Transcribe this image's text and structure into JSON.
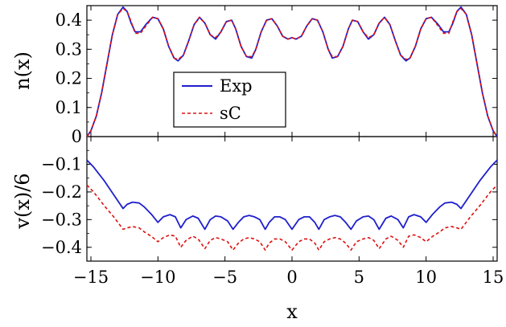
{
  "chart_data": [
    {
      "type": "line",
      "title": "",
      "xlabel": "",
      "ylabel": "n(x)",
      "xlim": [
        -15.3,
        15.3
      ],
      "ylim": [
        0,
        0.45
      ],
      "yticks": [
        0,
        0.1,
        0.2,
        0.3,
        0.4
      ],
      "ytick_labels": [
        "0",
        "0.1",
        "0.2",
        "0.3",
        "0.4"
      ],
      "legend": {
        "placement": "center-left",
        "entries": [
          {
            "label": "Exp",
            "color": "#1f1fcc",
            "style": "solid"
          },
          {
            "label": "sC",
            "color": "#e01010",
            "style": "dashed"
          }
        ]
      },
      "series": [
        {
          "name": "Exp",
          "color": "#1f1fcc",
          "style": "solid",
          "x": [
            -15.3,
            -15.0,
            -14.6,
            -14.2,
            -13.8,
            -13.4,
            -13.0,
            -12.6,
            -12.3,
            -12.0,
            -11.7,
            -11.3,
            -10.9,
            -10.4,
            -10.0,
            -9.6,
            -9.2,
            -8.8,
            -8.5,
            -8.1,
            -7.7,
            -7.3,
            -6.9,
            -6.5,
            -6.1,
            -5.7,
            -5.3,
            -4.9,
            -4.5,
            -4.2,
            -3.8,
            -3.4,
            -3.0,
            -2.7,
            -2.3,
            -1.9,
            -1.5,
            -1.1,
            -0.7,
            -0.3,
            0.0,
            0.3,
            0.7,
            1.1,
            1.5,
            1.9,
            2.3,
            2.7,
            3.0,
            3.4,
            3.8,
            4.2,
            4.5,
            4.9,
            5.3,
            5.7,
            6.1,
            6.5,
            6.9,
            7.3,
            7.7,
            8.1,
            8.5,
            8.8,
            9.2,
            9.6,
            10.0,
            10.4,
            10.9,
            11.3,
            11.7,
            12.0,
            12.3,
            12.6,
            13.0,
            13.4,
            13.8,
            14.2,
            14.6,
            15.0,
            15.3
          ],
          "y": [
            0.0,
            0.02,
            0.07,
            0.15,
            0.25,
            0.35,
            0.42,
            0.445,
            0.43,
            0.39,
            0.36,
            0.36,
            0.385,
            0.41,
            0.405,
            0.37,
            0.31,
            0.27,
            0.26,
            0.28,
            0.33,
            0.385,
            0.41,
            0.39,
            0.35,
            0.335,
            0.36,
            0.395,
            0.4,
            0.37,
            0.31,
            0.275,
            0.27,
            0.3,
            0.36,
            0.4,
            0.405,
            0.38,
            0.345,
            0.335,
            0.34,
            0.335,
            0.345,
            0.38,
            0.405,
            0.4,
            0.36,
            0.3,
            0.27,
            0.275,
            0.31,
            0.37,
            0.4,
            0.395,
            0.36,
            0.335,
            0.35,
            0.39,
            0.41,
            0.385,
            0.33,
            0.28,
            0.26,
            0.27,
            0.31,
            0.37,
            0.405,
            0.41,
            0.385,
            0.36,
            0.36,
            0.39,
            0.43,
            0.445,
            0.42,
            0.35,
            0.25,
            0.15,
            0.07,
            0.02,
            0.0
          ]
        },
        {
          "name": "sC",
          "color": "#e01010",
          "style": "dashed",
          "x": [
            -15.3,
            -15.0,
            -14.6,
            -14.2,
            -13.8,
            -13.4,
            -13.0,
            -12.6,
            -12.3,
            -12.0,
            -11.7,
            -11.3,
            -10.9,
            -10.4,
            -10.0,
            -9.6,
            -9.2,
            -8.8,
            -8.5,
            -8.1,
            -7.7,
            -7.3,
            -6.9,
            -6.5,
            -6.1,
            -5.7,
            -5.3,
            -4.9,
            -4.5,
            -4.2,
            -3.8,
            -3.4,
            -3.0,
            -2.7,
            -2.3,
            -1.9,
            -1.5,
            -1.1,
            -0.7,
            -0.3,
            0.0,
            0.3,
            0.7,
            1.1,
            1.5,
            1.9,
            2.3,
            2.7,
            3.0,
            3.4,
            3.8,
            4.2,
            4.5,
            4.9,
            5.3,
            5.7,
            6.1,
            6.5,
            6.9,
            7.3,
            7.7,
            8.1,
            8.5,
            8.8,
            9.2,
            9.6,
            10.0,
            10.4,
            10.9,
            11.3,
            11.7,
            12.0,
            12.3,
            12.6,
            13.0,
            13.4,
            13.8,
            14.2,
            14.6,
            15.0,
            15.3
          ],
          "y": [
            0.0,
            0.02,
            0.07,
            0.15,
            0.25,
            0.35,
            0.42,
            0.44,
            0.43,
            0.395,
            0.355,
            0.355,
            0.38,
            0.41,
            0.405,
            0.37,
            0.31,
            0.27,
            0.265,
            0.28,
            0.33,
            0.385,
            0.41,
            0.39,
            0.35,
            0.34,
            0.36,
            0.395,
            0.4,
            0.37,
            0.31,
            0.275,
            0.275,
            0.3,
            0.36,
            0.4,
            0.405,
            0.38,
            0.345,
            0.335,
            0.34,
            0.335,
            0.345,
            0.38,
            0.405,
            0.4,
            0.36,
            0.3,
            0.275,
            0.275,
            0.31,
            0.37,
            0.4,
            0.395,
            0.36,
            0.34,
            0.35,
            0.39,
            0.41,
            0.385,
            0.33,
            0.28,
            0.265,
            0.27,
            0.31,
            0.37,
            0.405,
            0.41,
            0.38,
            0.355,
            0.355,
            0.395,
            0.43,
            0.44,
            0.42,
            0.35,
            0.25,
            0.15,
            0.07,
            0.02,
            0.0
          ]
        }
      ]
    },
    {
      "type": "line",
      "title": "",
      "xlabel": "x",
      "ylabel": "v(x)/6",
      "xlim": [
        -15.3,
        15.3
      ],
      "ylim": [
        -0.45,
        0
      ],
      "xticks": [
        -15,
        -10,
        -5,
        0,
        5,
        10,
        15
      ],
      "xtick_labels": [
        "−15",
        "−10",
        "−5",
        "0",
        "5",
        "10",
        "15"
      ],
      "yticks": [
        -0.1,
        -0.2,
        -0.3,
        -0.4
      ],
      "ytick_labels": [
        "−0.1",
        "−0.2",
        "−0.3",
        "−0.4"
      ],
      "series": [
        {
          "name": "Exp",
          "color": "#1f1fcc",
          "style": "solid",
          "x": [
            -15.3,
            -14.8,
            -14.0,
            -13.3,
            -12.6,
            -12.3,
            -11.9,
            -11.4,
            -11.0,
            -10.5,
            -10.0,
            -9.6,
            -9.1,
            -8.7,
            -8.3,
            -7.9,
            -7.4,
            -7.0,
            -6.5,
            -6.1,
            -5.7,
            -5.3,
            -4.8,
            -4.4,
            -4.0,
            -3.6,
            -3.2,
            -2.8,
            -2.4,
            -2.0,
            -1.7,
            -1.3,
            -0.9,
            -0.5,
            0.0,
            0.5,
            0.9,
            1.3,
            1.7,
            2.0,
            2.4,
            2.8,
            3.2,
            3.6,
            4.0,
            4.4,
            4.8,
            5.3,
            5.7,
            6.1,
            6.5,
            7.0,
            7.4,
            7.9,
            8.3,
            8.7,
            9.1,
            9.6,
            10.0,
            10.5,
            11.0,
            11.4,
            11.9,
            12.3,
            12.6,
            13.3,
            14.0,
            14.8,
            15.3
          ],
          "y": [
            -0.085,
            -0.11,
            -0.16,
            -0.21,
            -0.26,
            -0.245,
            -0.237,
            -0.24,
            -0.255,
            -0.28,
            -0.31,
            -0.29,
            -0.282,
            -0.29,
            -0.33,
            -0.3,
            -0.287,
            -0.295,
            -0.335,
            -0.3,
            -0.287,
            -0.29,
            -0.305,
            -0.335,
            -0.31,
            -0.29,
            -0.285,
            -0.29,
            -0.3,
            -0.335,
            -0.31,
            -0.29,
            -0.29,
            -0.3,
            -0.335,
            -0.3,
            -0.29,
            -0.29,
            -0.31,
            -0.335,
            -0.3,
            -0.29,
            -0.285,
            -0.29,
            -0.31,
            -0.335,
            -0.305,
            -0.29,
            -0.287,
            -0.3,
            -0.335,
            -0.295,
            -0.287,
            -0.3,
            -0.33,
            -0.29,
            -0.282,
            -0.29,
            -0.31,
            -0.28,
            -0.255,
            -0.24,
            -0.237,
            -0.245,
            -0.26,
            -0.21,
            -0.16,
            -0.11,
            -0.085
          ]
        },
        {
          "name": "sC",
          "color": "#e01010",
          "style": "dashed",
          "x": [
            -15.3,
            -14.8,
            -14.0,
            -13.3,
            -12.6,
            -12.3,
            -11.9,
            -11.4,
            -11.0,
            -10.5,
            -10.0,
            -9.6,
            -9.1,
            -8.7,
            -8.3,
            -7.9,
            -7.4,
            -7.0,
            -6.5,
            -6.1,
            -5.7,
            -5.3,
            -4.8,
            -4.4,
            -4.0,
            -3.6,
            -3.2,
            -2.8,
            -2.4,
            -2.0,
            -1.7,
            -1.3,
            -0.9,
            -0.5,
            0.0,
            0.5,
            0.9,
            1.3,
            1.7,
            2.0,
            2.4,
            2.8,
            3.2,
            3.6,
            4.0,
            4.4,
            4.8,
            5.3,
            5.7,
            6.1,
            6.5,
            7.0,
            7.4,
            7.9,
            8.3,
            8.7,
            9.1,
            9.6,
            10.0,
            10.5,
            11.0,
            11.4,
            11.9,
            12.3,
            12.6,
            13.3,
            14.0,
            14.8,
            15.3
          ],
          "y": [
            -0.175,
            -0.2,
            -0.25,
            -0.29,
            -0.335,
            -0.33,
            -0.325,
            -0.33,
            -0.345,
            -0.36,
            -0.38,
            -0.365,
            -0.355,
            -0.36,
            -0.4,
            -0.375,
            -0.36,
            -0.37,
            -0.405,
            -0.375,
            -0.365,
            -0.37,
            -0.38,
            -0.41,
            -0.385,
            -0.37,
            -0.365,
            -0.37,
            -0.38,
            -0.41,
            -0.385,
            -0.37,
            -0.37,
            -0.38,
            -0.41,
            -0.38,
            -0.37,
            -0.37,
            -0.385,
            -0.41,
            -0.38,
            -0.37,
            -0.365,
            -0.37,
            -0.385,
            -0.41,
            -0.38,
            -0.37,
            -0.365,
            -0.375,
            -0.405,
            -0.37,
            -0.36,
            -0.375,
            -0.4,
            -0.36,
            -0.355,
            -0.365,
            -0.38,
            -0.36,
            -0.345,
            -0.33,
            -0.325,
            -0.33,
            -0.335,
            -0.29,
            -0.25,
            -0.2,
            -0.175
          ]
        }
      ]
    }
  ]
}
